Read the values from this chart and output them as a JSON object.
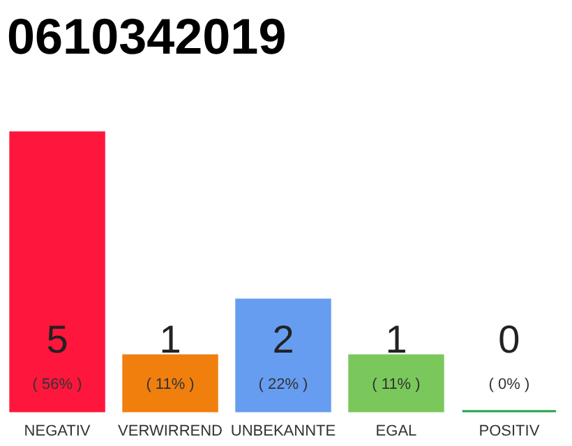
{
  "chart_data": {
    "type": "bar",
    "title": "0610342019",
    "categories": [
      "NEGATIV",
      "VERWIRREND",
      "UNBEKANNTE",
      "EGAL",
      "POSITIV"
    ],
    "values": [
      5,
      1,
      2,
      1,
      0
    ],
    "colors": [
      "#ff163c",
      "#f07f0e",
      "#669df0",
      "#7ac85c",
      "#20a24a"
    ],
    "data_labels": true,
    "annotations": [
      "( 56% )",
      "( 11% )",
      "( 22% )",
      "( 11% )",
      "( 0% )"
    ],
    "tick_labels": "x"
  }
}
